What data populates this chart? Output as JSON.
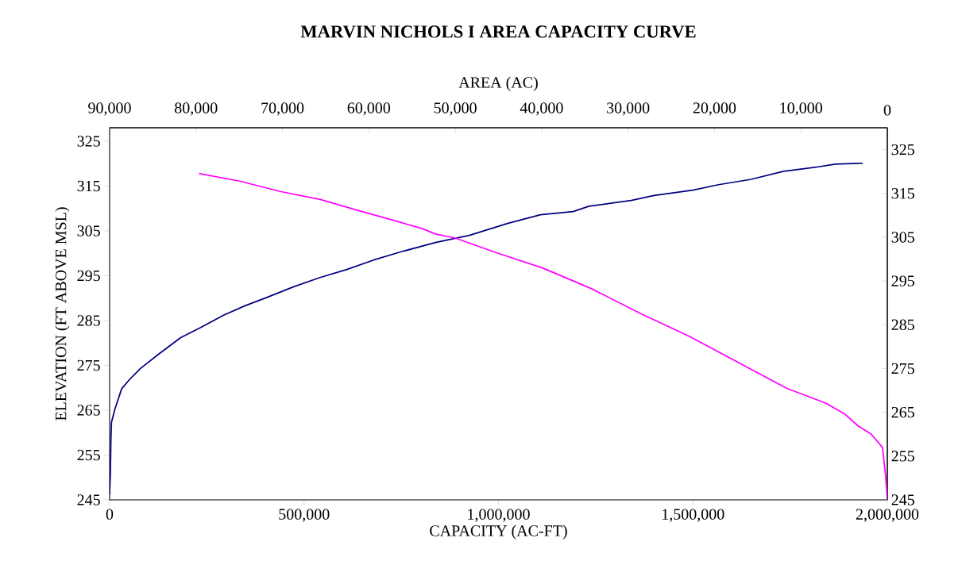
{
  "chart_data": {
    "type": "line",
    "title": "MARVIN NICHOLS I AREA CAPACITY CURVE",
    "xlabel": "CAPACITY (AC-FT)",
    "x2label": "AREA (AC)",
    "ylabel": "ELEVATION (FT ABOVE MSL)",
    "xlim": [
      0,
      2000000
    ],
    "xticks": [
      0,
      {
        "value": 500000,
        "label": "500,000"
      },
      {
        "value": 1000000,
        "label": "1,000,000"
      },
      {
        "value": 1500000,
        "label": "1,500,000"
      },
      {
        "value": 2000000,
        "label": "2,000,000"
      }
    ],
    "x2lim": [
      90000,
      0
    ],
    "x2ticks": [
      {
        "value": 90000,
        "label": "90,000"
      },
      {
        "value": 80000,
        "label": "80,000"
      },
      {
        "value": 70000,
        "label": "70,000"
      },
      {
        "value": 60000,
        "label": "60,000"
      },
      {
        "value": 50000,
        "label": "50,000"
      },
      {
        "value": 40000,
        "label": "40,000"
      },
      {
        "value": 30000,
        "label": "30,000"
      },
      {
        "value": 20000,
        "label": "20,000"
      },
      {
        "value": 10000,
        "label": "10,000"
      },
      0
    ],
    "ylim": [
      245,
      328
    ],
    "yticks": [
      245,
      255,
      265,
      275,
      285,
      295,
      305,
      315,
      325
    ],
    "y2lim": [
      245,
      330
    ],
    "y2ticks": [
      245,
      255,
      265,
      275,
      285,
      295,
      305,
      315,
      325
    ],
    "grid": false,
    "legend": false,
    "marker": "none",
    "line_style": "solid",
    "series": [
      {
        "color": "#000080",
        "x": [
          0,
          2000,
          3400,
          4800,
          13800,
          31000,
          51700,
          79300,
          127600,
          182800,
          231000,
          293000,
          348000,
          403000,
          472000,
          541000,
          610000,
          679000,
          748000,
          838000,
          925000,
          1025000,
          1108000,
          1192000,
          1233000,
          1341000,
          1400000,
          1500000,
          1566000,
          1650000,
          1733000,
          1816000,
          1866000,
          1937000
        ],
        "values": [
          246.2,
          251,
          258.7,
          262.3,
          265.3,
          269.8,
          271.9,
          274.3,
          277.6,
          281.2,
          283.3,
          286.2,
          288.3,
          290.1,
          292.5,
          294.6,
          296.4,
          298.5,
          300.3,
          302.4,
          304.0,
          306.7,
          308.6,
          309.3,
          310.5,
          311.8,
          312.9,
          314.1,
          315.3,
          316.5,
          318.3,
          319.2,
          319.9,
          320.1
        ]
      },
      {
        "color": "#ff00ff",
        "axis": "x2",
        "x": [
          79660,
          74940,
          70280,
          65620,
          60960,
          57240,
          53820,
          52290,
          50000,
          45500,
          39860,
          34220,
          28580,
          22940,
          17300,
          11660,
          7140,
          4890,
          3380,
          1880,
          560,
          190,
          0
        ],
        "values": [
          317.8,
          316.1,
          313.8,
          312.0,
          309.4,
          307.4,
          305.5,
          304.3,
          303.4,
          300.3,
          296.7,
          292.1,
          286.6,
          281.5,
          275.7,
          269.9,
          266.6,
          264.1,
          261.5,
          259.7,
          256.7,
          250.2,
          245.0
        ]
      }
    ]
  }
}
